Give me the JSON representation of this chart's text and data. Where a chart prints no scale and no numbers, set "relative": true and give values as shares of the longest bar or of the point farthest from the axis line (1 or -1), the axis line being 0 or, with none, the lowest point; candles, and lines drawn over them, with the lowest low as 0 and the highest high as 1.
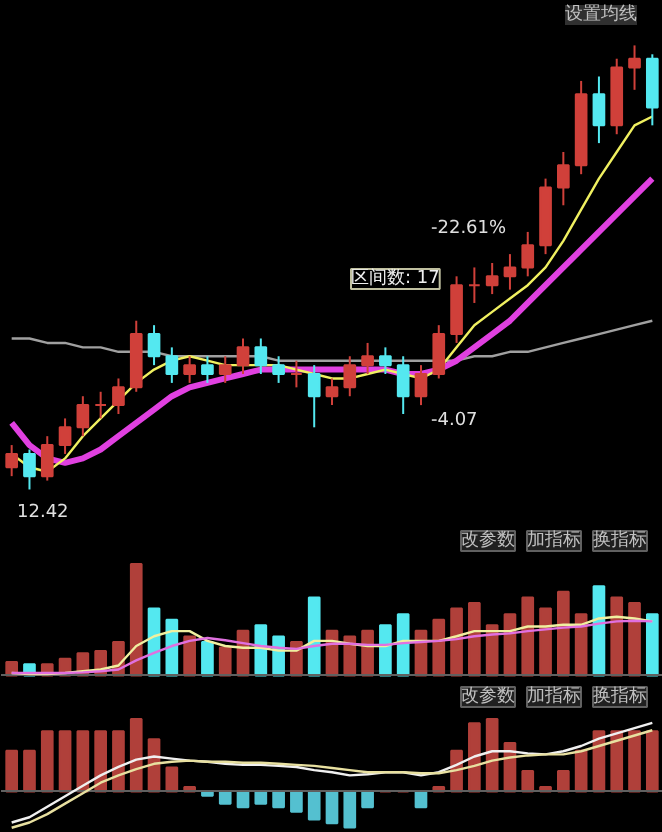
{
  "chart_data": [
    {
      "type": "candlestick",
      "relative": true,
      "categories": [
        null,
        null,
        null,
        null,
        null,
        null,
        null,
        null,
        null,
        null,
        null,
        null,
        null,
        null,
        null,
        null,
        null,
        null,
        null,
        null,
        null,
        null,
        null,
        null,
        null,
        null,
        null,
        null,
        null,
        null,
        null,
        null,
        null,
        null,
        null,
        null,
        null
      ],
      "ohlc": [
        [
          0.05,
          0.1,
          0.03,
          0.08
        ],
        [
          0.08,
          0.09,
          0,
          0.03
        ],
        [
          0.03,
          0.12,
          0.02,
          0.1
        ],
        [
          0.1,
          0.16,
          0.08,
          0.14
        ],
        [
          0.14,
          0.21,
          0.12,
          0.19
        ],
        [
          0.19,
          0.22,
          0.16,
          0.19
        ],
        [
          0.19,
          0.25,
          0.17,
          0.23
        ],
        [
          0.23,
          0.38,
          0.22,
          0.35
        ],
        [
          0.35,
          0.37,
          0.28,
          0.3
        ],
        [
          0.3,
          0.32,
          0.24,
          0.26
        ],
        [
          0.26,
          0.3,
          0.24,
          0.28
        ],
        [
          0.28,
          0.3,
          0.24,
          0.26
        ],
        [
          0.26,
          0.3,
          0.24,
          0.28
        ],
        [
          0.28,
          0.34,
          0.26,
          0.32
        ],
        [
          0.32,
          0.34,
          0.26,
          0.28
        ],
        [
          0.28,
          0.3,
          0.24,
          0.26
        ],
        [
          0.26,
          0.29,
          0.23,
          0.26
        ],
        [
          0.26,
          0.28,
          0.14,
          0.21
        ],
        [
          0.21,
          0.25,
          0.19,
          0.23
        ],
        [
          0.23,
          0.3,
          0.21,
          0.28
        ],
        [
          0.28,
          0.33,
          0.26,
          0.3
        ],
        [
          0.3,
          0.32,
          0.26,
          0.28
        ],
        [
          0.28,
          0.3,
          0.17,
          0.21
        ],
        [
          0.21,
          0.28,
          0.19,
          0.26
        ],
        [
          0.26,
          0.37,
          0.25,
          0.35
        ],
        [
          0.35,
          0.48,
          0.33,
          0.46
        ],
        [
          0.46,
          0.5,
          0.42,
          0.46
        ],
        [
          0.46,
          0.51,
          0.44,
          0.48
        ],
        [
          0.48,
          0.53,
          0.45,
          0.5
        ],
        [
          0.5,
          0.58,
          0.48,
          0.55
        ],
        [
          0.55,
          0.7,
          0.53,
          0.68
        ],
        [
          0.68,
          0.76,
          0.64,
          0.73
        ],
        [
          0.73,
          0.92,
          0.71,
          0.89
        ],
        [
          0.89,
          0.93,
          0.78,
          0.82
        ],
        [
          0.82,
          0.97,
          0.8,
          0.95
        ],
        [
          0.95,
          1,
          0.9,
          0.97
        ],
        [
          0.97,
          0.98,
          0.82,
          0.86
        ]
      ],
      "colors": [
        "#d0403a",
        "#54e8f0",
        "#d0403a",
        "#d0403a",
        "#d0403a",
        "#d0403a",
        "#d0403a",
        "#d0403a",
        "#54e8f0",
        "#54e8f0",
        "#d0403a",
        "#54e8f0",
        "#d0403a",
        "#d0403a",
        "#54e8f0",
        "#54e8f0",
        "#d0403a",
        "#54e8f0",
        "#d0403a",
        "#d0403a",
        "#d0403a",
        "#54e8f0",
        "#54e8f0",
        "#d0403a",
        "#d0403a",
        "#d0403a",
        "#d0403a",
        "#d0403a",
        "#d0403a",
        "#d0403a",
        "#d0403a",
        "#d0403a",
        "#d0403a",
        "#54e8f0",
        "#d0403a",
        "#d0403a",
        "#54e8f0"
      ],
      "series": [
        {
          "type": "line",
          "color": "#a0a0a0",
          "values": [
            0.34,
            0.34,
            0.33,
            0.33,
            0.32,
            0.32,
            0.31,
            0.31,
            0.31,
            0.3,
            0.3,
            0.3,
            0.3,
            0.3,
            0.3,
            0.29,
            0.29,
            0.29,
            0.29,
            0.29,
            0.29,
            0.29,
            0.29,
            0.29,
            0.29,
            0.29,
            0.3,
            0.3,
            0.31,
            0.31,
            0.32,
            0.33,
            0.34,
            0.35,
            0.36,
            0.37,
            0.38
          ]
        },
        {
          "type": "line",
          "color": "#e040e0",
          "values": [
            0.15,
            0.1,
            0.07,
            0.06,
            0.07,
            0.09,
            0.12,
            0.15,
            0.18,
            0.21,
            0.23,
            0.24,
            0.25,
            0.26,
            0.27,
            0.27,
            0.27,
            0.27,
            0.27,
            0.27,
            0.27,
            0.27,
            0.26,
            0.26,
            0.27,
            0.29,
            0.32,
            0.35,
            0.38,
            0.42,
            0.46,
            0.5,
            0.54,
            0.58,
            0.62,
            0.66,
            0.7
          ]
        },
        {
          "type": "line",
          "color": "#f0f060",
          "values": [
            0.08,
            0.05,
            0.04,
            0.07,
            0.12,
            0.16,
            0.2,
            0.24,
            0.27,
            0.29,
            0.3,
            0.29,
            0.28,
            0.28,
            0.28,
            0.28,
            0.27,
            0.26,
            0.25,
            0.25,
            0.26,
            0.27,
            0.26,
            0.25,
            0.27,
            0.32,
            0.37,
            0.4,
            0.43,
            0.46,
            0.5,
            0.56,
            0.63,
            0.7,
            0.76,
            0.82,
            0.84
          ]
        }
      ],
      "annotations": [
        "设置均线",
        "-22.61%",
        "区间数: 17",
        "-4.07",
        "12.42"
      ]
    },
    {
      "type": "bar",
      "relative": true,
      "categories": [
        null,
        null,
        null,
        null,
        null,
        null,
        null,
        null,
        null,
        null,
        null,
        null,
        null,
        null,
        null,
        null,
        null,
        null,
        null,
        null,
        null,
        null,
        null,
        null,
        null,
        null,
        null,
        null,
        null,
        null,
        null,
        null,
        null,
        null,
        null,
        null,
        null
      ],
      "values": [
        0.12,
        0.1,
        0.1,
        0.15,
        0.2,
        0.22,
        0.3,
        1.0,
        0.6,
        0.5,
        0.35,
        0.3,
        0.25,
        0.4,
        0.45,
        0.35,
        0.3,
        0.7,
        0.4,
        0.35,
        0.4,
        0.45,
        0.55,
        0.4,
        0.5,
        0.6,
        0.65,
        0.45,
        0.55,
        0.7,
        0.6,
        0.75,
        0.55,
        0.8,
        0.7,
        0.65,
        0.55
      ],
      "colors": [
        "#b0403a",
        "#54e8f0",
        "#b0403a",
        "#b0403a",
        "#b0403a",
        "#b0403a",
        "#b0403a",
        "#b0403a",
        "#54e8f0",
        "#54e8f0",
        "#b0403a",
        "#54e8f0",
        "#b0403a",
        "#b0403a",
        "#54e8f0",
        "#54e8f0",
        "#b0403a",
        "#54e8f0",
        "#b0403a",
        "#b0403a",
        "#b0403a",
        "#54e8f0",
        "#54e8f0",
        "#b0403a",
        "#b0403a",
        "#b0403a",
        "#b0403a",
        "#b0403a",
        "#b0403a",
        "#b0403a",
        "#b0403a",
        "#b0403a",
        "#b0403a",
        "#54e8f0",
        "#b0403a",
        "#b0403a",
        "#54e8f0"
      ],
      "annotations": [
        "改参数",
        "加指标",
        "换指标"
      ]
    },
    {
      "type": "line",
      "relative": true,
      "categories": [
        null,
        null,
        null,
        null,
        null,
        null,
        null,
        null,
        null,
        null,
        null,
        null,
        null,
        null,
        null,
        null,
        null,
        null,
        null,
        null,
        null,
        null,
        null,
        null,
        null,
        null,
        null,
        null,
        null,
        null,
        null,
        null,
        null,
        null,
        null,
        null,
        null
      ],
      "series": [
        {
          "color": "#f0f0a0",
          "values": [
            0.02,
            0,
            0,
            0.02,
            0.05,
            0.08,
            0.15,
            0.49,
            0.66,
            0.75,
            0.75,
            0.58,
            0.49,
            0.46,
            0.46,
            0.41,
            0.41,
            0.58,
            0.58,
            0.53,
            0.49,
            0.49,
            0.58,
            0.58,
            0.58,
            0.66,
            0.75,
            0.75,
            0.75,
            0.83,
            0.83,
            0.86,
            0.86,
            0.97,
            1,
            0.97,
            0.92
          ]
        },
        {
          "color": "#e070e0",
          "values": [
            0.02,
            0.02,
            0.02,
            0.02,
            0.03,
            0.05,
            0.08,
            0.24,
            0.37,
            0.49,
            0.58,
            0.63,
            0.59,
            0.54,
            0.49,
            0.46,
            0.44,
            0.49,
            0.53,
            0.53,
            0.51,
            0.51,
            0.54,
            0.56,
            0.58,
            0.61,
            0.66,
            0.69,
            0.71,
            0.75,
            0.78,
            0.81,
            0.83,
            0.88,
            0.92,
            0.93,
            0.92
          ]
        }
      ]
    },
    {
      "type": "bar",
      "relative": true,
      "categories": [
        null,
        null,
        null,
        null,
        null,
        null,
        null,
        null,
        null,
        null,
        null,
        null,
        null,
        null,
        null,
        null,
        null,
        null,
        null,
        null,
        null,
        null,
        null,
        null,
        null,
        null,
        null,
        null,
        null,
        null,
        null,
        null,
        null,
        null,
        null,
        null,
        null
      ],
      "values": [
        0.56,
        0.56,
        0.83,
        0.83,
        0.83,
        0.83,
        0.83,
        1,
        0.72,
        0.33,
        0.06,
        -0.06,
        -0.17,
        -0.22,
        -0.17,
        -0.22,
        -0.28,
        -0.39,
        -0.44,
        -0.5,
        -0.22,
        0,
        0,
        -0.22,
        0.06,
        0.56,
        0.94,
        1,
        0.67,
        0.28,
        0.06,
        0.28,
        0.56,
        0.83,
        0.83,
        0.83,
        0.83
      ],
      "colors": [
        "#b0403a",
        "#b0403a",
        "#b0403a",
        "#b0403a",
        "#b0403a",
        "#b0403a",
        "#b0403a",
        "#b0403a",
        "#b0403a",
        "#b0403a",
        "#b0403a",
        "#54c0d0",
        "#54c0d0",
        "#54c0d0",
        "#54c0d0",
        "#54c0d0",
        "#54c0d0",
        "#54c0d0",
        "#54c0d0",
        "#54c0d0",
        "#54c0d0",
        "#b0403a",
        "#b0403a",
        "#54c0d0",
        "#b0403a",
        "#b0403a",
        "#b0403a",
        "#b0403a",
        "#b0403a",
        "#b0403a",
        "#b0403a",
        "#b0403a",
        "#b0403a",
        "#b0403a",
        "#b0403a",
        "#b0403a",
        "#b0403a"
      ],
      "annotations": [
        "改参数",
        "加指标",
        "换指标"
      ]
    },
    {
      "type": "line",
      "relative": true,
      "categories": [
        null,
        null,
        null,
        null,
        null,
        null,
        null,
        null,
        null,
        null,
        null,
        null,
        null,
        null,
        null,
        null,
        null,
        null,
        null,
        null,
        null,
        null,
        null,
        null,
        null,
        null,
        null,
        null,
        null,
        null,
        null,
        null,
        null,
        null,
        null,
        null,
        null
      ],
      "series": [
        {
          "color": "#f0f0f0",
          "values": [
            0.05,
            0.1,
            0.2,
            0.3,
            0.4,
            0.5,
            0.58,
            0.65,
            0.68,
            0.66,
            0.64,
            0.63,
            0.61,
            0.6,
            0.6,
            0.59,
            0.58,
            0.55,
            0.53,
            0.5,
            0.51,
            0.53,
            0.53,
            0.5,
            0.53,
            0.6,
            0.68,
            0.73,
            0.73,
            0.71,
            0.7,
            0.73,
            0.78,
            0.85,
            0.9,
            0.95,
            1
          ]
        },
        {
          "color": "#e8e0a0",
          "values": [
            0,
            0.05,
            0.13,
            0.23,
            0.33,
            0.43,
            0.5,
            0.56,
            0.61,
            0.63,
            0.64,
            0.63,
            0.63,
            0.62,
            0.62,
            0.61,
            0.6,
            0.59,
            0.57,
            0.55,
            0.53,
            0.53,
            0.53,
            0.52,
            0.52,
            0.55,
            0.59,
            0.64,
            0.67,
            0.69,
            0.7,
            0.7,
            0.73,
            0.78,
            0.83,
            0.88,
            0.93
          ]
        }
      ]
    }
  ]
}
